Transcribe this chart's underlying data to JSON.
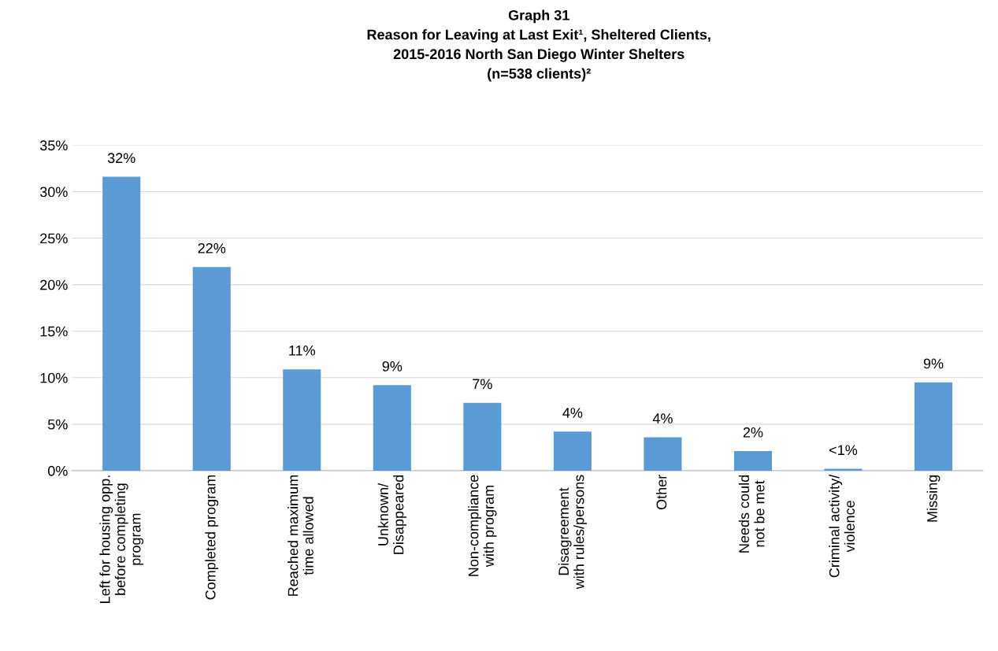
{
  "chart_data": {
    "type": "bar",
    "title": "Graph 31\nReason for Leaving at Last Exit¹, Sheltered Clients,\n2015-2016 North San Diego Winter Shelters\n(n=538 clients)²",
    "categories": [
      "Left for housing opp.\nbefore completing\nprogram",
      "Completed program",
      "Reached maximum\ntime allowed",
      "Unknown/\nDisappeared",
      "Non-compliance\nwith program",
      "Disagreement\nwith rules/persons",
      "Other",
      "Needs could\nnot be met",
      "Criminal activity/\nviolence",
      "Missing"
    ],
    "values": [
      31.6,
      21.9,
      10.9,
      9.2,
      7.3,
      4.2,
      3.6,
      2.1,
      0.2,
      9.5
    ],
    "value_labels": [
      "32%",
      "22%",
      "11%",
      "9%",
      "7%",
      "4%",
      "4%",
      "2%",
      "<1%",
      "9%"
    ],
    "color": "#5b9bd5",
    "ylim": [
      0,
      35
    ],
    "yticks": [
      {
        "value": 0,
        "label": "0%"
      },
      {
        "value": 5,
        "label": "5%"
      },
      {
        "value": 10,
        "label": "10%"
      },
      {
        "value": 15,
        "label": "15%"
      },
      {
        "value": 20,
        "label": "20%"
      },
      {
        "value": 25,
        "label": "25%"
      },
      {
        "value": 30,
        "label": "30%"
      },
      {
        "value": 35,
        "label": "35%"
      }
    ],
    "grid": "y"
  }
}
